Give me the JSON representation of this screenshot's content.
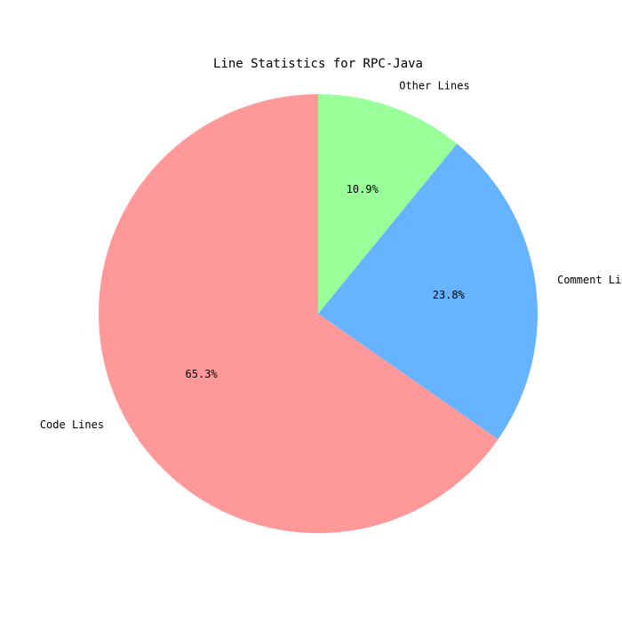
{
  "chart_data": {
    "type": "pie",
    "title": "Line Statistics for RPC-Java",
    "labels": [
      "Code Lines",
      "Comment Lines",
      "Other Lines"
    ],
    "values": [
      65.3,
      23.8,
      10.9
    ],
    "percent_labels": [
      "65.3%",
      "23.8%",
      "10.9%"
    ],
    "colors": [
      "#ff9999",
      "#66b3ff",
      "#99ff99"
    ],
    "start_angle_deg": 90,
    "direction": "counterclockwise"
  }
}
